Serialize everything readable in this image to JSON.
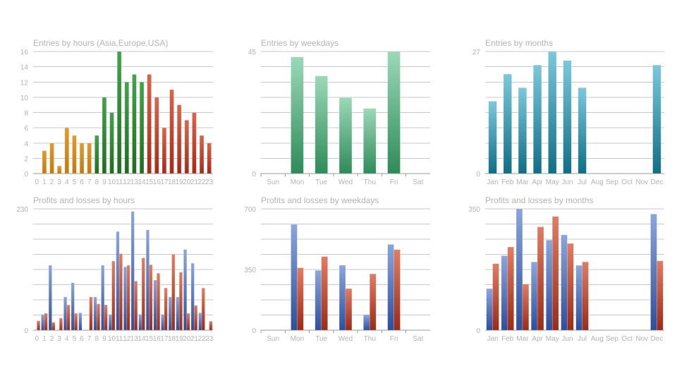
{
  "chart_data": [
    {
      "type": "bar",
      "title": "Entries by hours (Asia,Europe,USA)",
      "categories": [
        "0",
        "1",
        "2",
        "3",
        "4",
        "5",
        "6",
        "7",
        "8",
        "9",
        "10",
        "11",
        "12",
        "13",
        "14",
        "15",
        "16",
        "17",
        "18",
        "19",
        "20",
        "21",
        "22",
        "23"
      ],
      "values": [
        0,
        3,
        4,
        1,
        6,
        5,
        4,
        4,
        5,
        10,
        8,
        16,
        12,
        13,
        12,
        13,
        10,
        6,
        11,
        9,
        7,
        8,
        5,
        4
      ],
      "ylim": [
        0,
        16
      ],
      "yticks": [
        "0",
        "2",
        "4",
        "6",
        "8",
        "10",
        "12",
        "14",
        "16"
      ],
      "grid": true,
      "legend": "none"
    },
    {
      "type": "bar",
      "title": "Entries by weekdays",
      "categories": [
        "Sun",
        "Mon",
        "Tue",
        "Wed",
        "Thu",
        "Fri",
        "Sat"
      ],
      "values": [
        0,
        43,
        36,
        28,
        24,
        45,
        0
      ],
      "ylim": [
        0,
        45
      ],
      "yticks": [
        "0",
        "45"
      ],
      "grid": true,
      "legend": "none"
    },
    {
      "type": "bar",
      "title": "Entries by months",
      "categories": [
        "Jan",
        "Feb",
        "Mar",
        "Apr",
        "May",
        "Jun",
        "Jul",
        "Aug",
        "Sep",
        "Oct",
        "Nov",
        "Dec"
      ],
      "values": [
        16,
        22,
        19,
        24,
        27,
        25,
        19,
        0,
        0,
        0,
        0,
        24
      ],
      "ylim": [
        0,
        27
      ],
      "yticks": [
        "0",
        "27"
      ],
      "grid": true,
      "legend": "none"
    },
    {
      "type": "bar",
      "title": "Profits and losses by hours",
      "categories": [
        "0",
        "1",
        "2",
        "3",
        "4",
        "5",
        "6",
        "7",
        "8",
        "9",
        "10",
        "11",
        "12",
        "13",
        "14",
        "15",
        "16",
        "17",
        "18",
        "19",
        "20",
        "21",
        "22",
        "23"
      ],
      "series": [
        {
          "values": [
            0,
            30,
            123,
            0,
            63,
            90,
            33,
            0,
            63,
            123,
            30,
            187,
            120,
            225,
            30,
            190,
            95,
            30,
            63,
            63,
            153,
            127,
            33,
            0
          ]
        },
        {
          "values": [
            18,
            32,
            15,
            23,
            48,
            32,
            0,
            63,
            50,
            48,
            131,
            145,
            123,
            93,
            137,
            124,
            108,
            80,
            144,
            110,
            32,
            47,
            80,
            17
          ]
        }
      ],
      "ylim": [
        0,
        230
      ],
      "yticks": [
        "0",
        "230"
      ],
      "grid": true,
      "legend": "none"
    },
    {
      "type": "bar",
      "title": "Profits and losses by weekdays",
      "categories": [
        "Sun",
        "Mon",
        "Tue",
        "Wed",
        "Thu",
        "Fri",
        "Sat"
      ],
      "series": [
        {
          "values": [
            0,
            610,
            345,
            375,
            90,
            495,
            0
          ]
        },
        {
          "values": [
            0,
            360,
            425,
            240,
            325,
            465,
            0
          ]
        }
      ],
      "ylim": [
        0,
        700
      ],
      "yticks": [
        "0",
        "350",
        "700"
      ],
      "grid": true,
      "legend": "none"
    },
    {
      "type": "bar",
      "title": "Profits and losses by months",
      "categories": [
        "Jan",
        "Feb",
        "Mar",
        "Apr",
        "May",
        "Jun",
        "Jul",
        "Aug",
        "Sep",
        "Oct",
        "Nov",
        "Dec"
      ],
      "series": [
        {
          "values": [
            120,
            215,
            350,
            197,
            260,
            275,
            187,
            0,
            0,
            0,
            0,
            335
          ]
        },
        {
          "values": [
            192,
            240,
            133,
            298,
            328,
            250,
            197,
            0,
            0,
            0,
            0,
            200
          ]
        }
      ],
      "ylim": [
        0,
        350
      ],
      "yticks": [
        "0",
        "350"
      ],
      "grid": true,
      "legend": "none"
    }
  ],
  "colors": {
    "orange": [
      "#e39a2d",
      "#c27a10"
    ],
    "green_dark": [
      "#43a34b",
      "#1e6e1e"
    ],
    "red": [
      "#d9654a",
      "#a52a18"
    ],
    "mint": [
      "#9bd9b8",
      "#2e8b57"
    ],
    "teal": [
      "#7cc8dc",
      "#0f6e85"
    ],
    "blue": [
      "#8ba6dc",
      "#2d4e9c"
    ],
    "rust": [
      "#e07d62",
      "#9b2b17"
    ],
    "grid": "#c8c8c8",
    "text": "#b3b3b3"
  }
}
